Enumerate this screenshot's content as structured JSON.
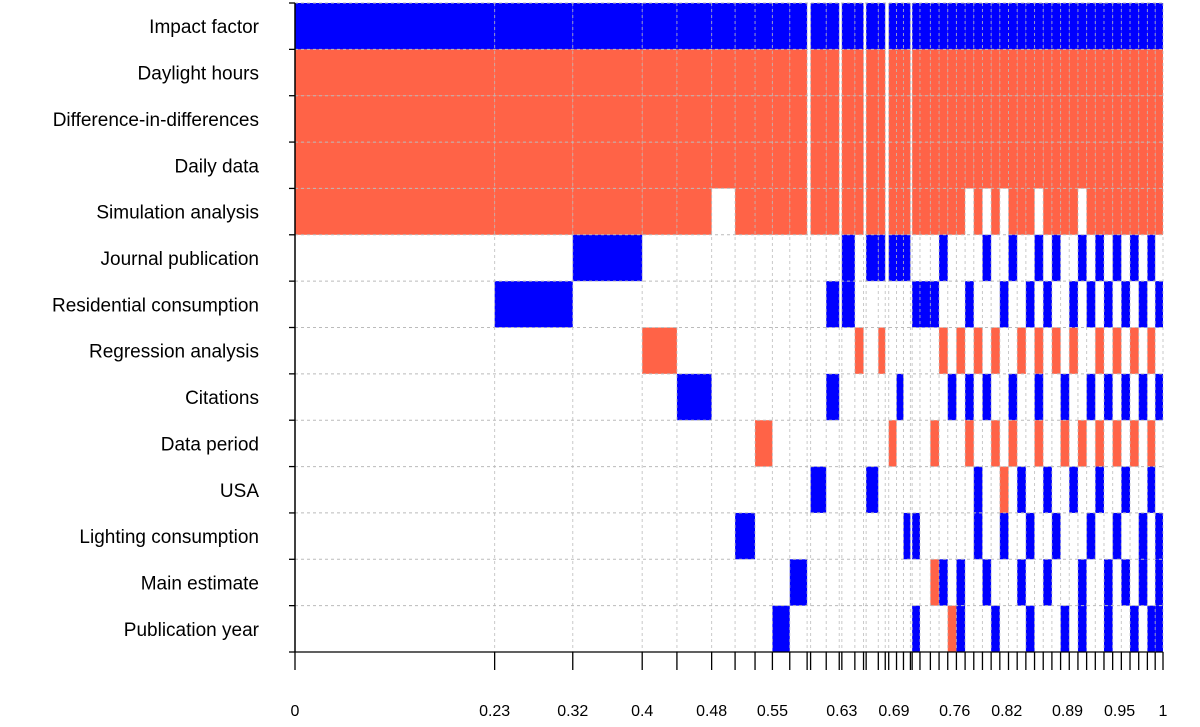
{
  "chart_data": {
    "type": "heatmap",
    "title": "",
    "xlabel": "",
    "ylabel": "",
    "xlim": [
      0,
      1
    ],
    "grid": true,
    "colors": {
      "positive": "#0000ff",
      "negative": "#ff6347",
      "empty": "#ffffff",
      "grid": "#bbbbbb"
    },
    "variables": [
      "Impact factor",
      "Daylight hours",
      "Difference-in-differences",
      "Daily data",
      "Simulation analysis",
      "Journal publication",
      "Residential consumption",
      "Regression analysis",
      "Citations",
      "Data period",
      "USA",
      "Lighting consumption",
      "Main estimate",
      "Publication year"
    ],
    "x_tick_labels": [
      "0",
      "0.23",
      "0.32",
      "0.4",
      "0.48",
      "0.55",
      "0.63",
      "0.69",
      "0.76",
      "0.82",
      "0.89",
      "0.95",
      "1"
    ],
    "x_tick_values": [
      0,
      0.23,
      0.32,
      0.4,
      0.48,
      0.55,
      0.63,
      0.69,
      0.76,
      0.82,
      0.89,
      0.95,
      1
    ],
    "models": [
      {
        "x0": 0.0,
        "x1": 0.23,
        "cells": {
          "Impact factor": "+",
          "Daylight hours": "-",
          "Difference-in-differences": "-",
          "Daily data": "-",
          "Simulation analysis": "-"
        }
      },
      {
        "x0": 0.23,
        "x1": 0.32,
        "cells": {
          "Impact factor": "+",
          "Daylight hours": "-",
          "Difference-in-differences": "-",
          "Daily data": "-",
          "Simulation analysis": "-",
          "Residential consumption": "+"
        }
      },
      {
        "x0": 0.32,
        "x1": 0.4,
        "cells": {
          "Impact factor": "+",
          "Daylight hours": "-",
          "Difference-in-differences": "-",
          "Daily data": "-",
          "Simulation analysis": "-",
          "Journal publication": "+"
        }
      },
      {
        "x0": 0.4,
        "x1": 0.44,
        "cells": {
          "Impact factor": "+",
          "Daylight hours": "-",
          "Difference-in-differences": "-",
          "Daily data": "-",
          "Simulation analysis": "-",
          "Regression analysis": "-"
        }
      },
      {
        "x0": 0.44,
        "x1": 0.48,
        "cells": {
          "Impact factor": "+",
          "Daylight hours": "-",
          "Difference-in-differences": "-",
          "Daily data": "-",
          "Simulation analysis": "-",
          "Citations": "+"
        }
      },
      {
        "x0": 0.48,
        "x1": 0.507,
        "cells": {
          "Impact factor": "+",
          "Daylight hours": "-",
          "Difference-in-differences": "-",
          "Daily data": "-"
        }
      },
      {
        "x0": 0.507,
        "x1": 0.53,
        "cells": {
          "Impact factor": "+",
          "Daylight hours": "-",
          "Difference-in-differences": "-",
          "Daily data": "-",
          "Simulation analysis": "-",
          "Lighting consumption": "+"
        }
      },
      {
        "x0": 0.53,
        "x1": 0.55,
        "cells": {
          "Impact factor": "+",
          "Daylight hours": "-",
          "Difference-in-differences": "-",
          "Daily data": "-",
          "Simulation analysis": "-",
          "Data period": "-"
        }
      },
      {
        "x0": 0.55,
        "x1": 0.57,
        "cells": {
          "Impact factor": "+",
          "Daylight hours": "-",
          "Difference-in-differences": "-",
          "Daily data": "-",
          "Simulation analysis": "-",
          "Publication year": "+"
        }
      },
      {
        "x0": 0.57,
        "x1": 0.59,
        "cells": {
          "Impact factor": "+",
          "Daylight hours": "-",
          "Difference-in-differences": "-",
          "Daily data": "-",
          "Simulation analysis": "-",
          "Main estimate": "+"
        }
      },
      {
        "x0": 0.594,
        "x1": 0.612,
        "cells": {
          "Impact factor": "+",
          "Daylight hours": "-",
          "Difference-in-differences": "-",
          "Daily data": "-",
          "Simulation analysis": "-",
          "USA": "+"
        }
      },
      {
        "x0": 0.612,
        "x1": 0.627,
        "cells": {
          "Impact factor": "+",
          "Daylight hours": "-",
          "Difference-in-differences": "-",
          "Daily data": "-",
          "Simulation analysis": "-",
          "Residential consumption": "+",
          "Citations": "+"
        }
      },
      {
        "x0": 0.63,
        "x1": 0.645,
        "cells": {
          "Impact factor": "+",
          "Daylight hours": "-",
          "Difference-in-differences": "-",
          "Daily data": "-",
          "Simulation analysis": "-",
          "Journal publication": "+",
          "Residential consumption": "+"
        }
      },
      {
        "x0": 0.645,
        "x1": 0.655,
        "cells": {
          "Impact factor": "+",
          "Daylight hours": "-",
          "Difference-in-differences": "-",
          "Daily data": "-",
          "Simulation analysis": "-",
          "Regression analysis": "-"
        }
      },
      {
        "x0": 0.658,
        "x1": 0.672,
        "cells": {
          "Impact factor": "+",
          "Daylight hours": "-",
          "Difference-in-differences": "-",
          "Daily data": "-",
          "Simulation analysis": "-",
          "Journal publication": "+",
          "USA": "+"
        }
      },
      {
        "x0": 0.672,
        "x1": 0.68,
        "cells": {
          "Impact factor": "+",
          "Daylight hours": "-",
          "Difference-in-differences": "-",
          "Daily data": "-",
          "Simulation analysis": "-",
          "Journal publication": "+",
          "Regression analysis": "-"
        }
      },
      {
        "x0": 0.684,
        "x1": 0.693,
        "cells": {
          "Impact factor": "+",
          "Daylight hours": "-",
          "Difference-in-differences": "-",
          "Daily data": "-",
          "Simulation analysis": "-",
          "Journal publication": "+",
          "Data period": "-"
        }
      },
      {
        "x0": 0.693,
        "x1": 0.701,
        "cells": {
          "Impact factor": "+",
          "Daylight hours": "-",
          "Difference-in-differences": "-",
          "Daily data": "-",
          "Simulation analysis": "-",
          "Journal publication": "+",
          "Citations": "+"
        }
      },
      {
        "x0": 0.701,
        "x1": 0.709,
        "cells": {
          "Impact factor": "+",
          "Daylight hours": "-",
          "Difference-in-differences": "-",
          "Daily data": "-",
          "Simulation analysis": "-",
          "Journal publication": "+",
          "Lighting consumption": "+"
        }
      },
      {
        "x0": 0.711,
        "x1": 0.72,
        "cells": {
          "Impact factor": "+",
          "Daylight hours": "-",
          "Difference-in-differences": "-",
          "Daily data": "-",
          "Simulation analysis": "-",
          "Residential consumption": "+",
          "Lighting consumption": "+",
          "Publication year": "+"
        }
      },
      {
        "x0": 0.72,
        "x1": 0.732,
        "cells": {
          "Impact factor": "+",
          "Daylight hours": "-",
          "Difference-in-differences": "-",
          "Daily data": "-",
          "Simulation analysis": "-",
          "Residential consumption": "+"
        }
      },
      {
        "x0": 0.732,
        "x1": 0.742,
        "cells": {
          "Impact factor": "+",
          "Daylight hours": "-",
          "Difference-in-differences": "-",
          "Daily data": "-",
          "Simulation analysis": "-",
          "Residential consumption": "+",
          "Data period": "-",
          "Main estimate": "-"
        }
      },
      {
        "x0": 0.742,
        "x1": 0.752,
        "cells": {
          "Impact factor": "+",
          "Daylight hours": "-",
          "Difference-in-differences": "-",
          "Daily data": "-",
          "Simulation analysis": "-",
          "Journal publication": "+",
          "Regression analysis": "-",
          "Main estimate": "+"
        }
      },
      {
        "x0": 0.752,
        "x1": 0.762,
        "cells": {
          "Impact factor": "+",
          "Daylight hours": "-",
          "Difference-in-differences": "-",
          "Daily data": "-",
          "Simulation analysis": "-",
          "Citations": "+",
          "Publication year": "-"
        }
      },
      {
        "x0": 0.762,
        "x1": 0.772,
        "cells": {
          "Impact factor": "+",
          "Daylight hours": "-",
          "Difference-in-differences": "-",
          "Daily data": "-",
          "Simulation analysis": "-",
          "Regression analysis": "-",
          "Main estimate": "+",
          "Publication year": "+"
        }
      },
      {
        "x0": 0.772,
        "x1": 0.782,
        "cells": {
          "Impact factor": "+",
          "Daylight hours": "-",
          "Difference-in-differences": "-",
          "Daily data": "-",
          "Residential consumption": "+",
          "Citations": "+",
          "Data period": "-"
        }
      },
      {
        "x0": 0.782,
        "x1": 0.792,
        "cells": {
          "Impact factor": "+",
          "Daylight hours": "-",
          "Difference-in-differences": "-",
          "Daily data": "-",
          "Simulation analysis": "-",
          "Regression analysis": "-",
          "Lighting consumption": "+",
          "USA": "+"
        }
      },
      {
        "x0": 0.792,
        "x1": 0.802,
        "cells": {
          "Impact factor": "+",
          "Daylight hours": "-",
          "Difference-in-differences": "-",
          "Daily data": "-",
          "Journal publication": "+",
          "Citations": "+",
          "Main estimate": "+"
        }
      },
      {
        "x0": 0.802,
        "x1": 0.812,
        "cells": {
          "Impact factor": "+",
          "Daylight hours": "-",
          "Difference-in-differences": "-",
          "Daily data": "-",
          "Simulation analysis": "-",
          "Regression analysis": "-",
          "Data period": "-",
          "Publication year": "+"
        }
      },
      {
        "x0": 0.812,
        "x1": 0.822,
        "cells": {
          "Impact factor": "+",
          "Daylight hours": "-",
          "Difference-in-differences": "-",
          "Daily data": "-",
          "Residential consumption": "+",
          "USA": "-",
          "Lighting consumption": "+"
        }
      },
      {
        "x0": 0.822,
        "x1": 0.832,
        "cells": {
          "Impact factor": "+",
          "Daylight hours": "-",
          "Difference-in-differences": "-",
          "Daily data": "-",
          "Simulation analysis": "-",
          "Journal publication": "+",
          "Citations": "+",
          "Data period": "-"
        }
      },
      {
        "x0": 0.832,
        "x1": 0.842,
        "cells": {
          "Impact factor": "+",
          "Daylight hours": "-",
          "Difference-in-differences": "-",
          "Daily data": "-",
          "Simulation analysis": "-",
          "Regression analysis": "-",
          "USA": "+",
          "Main estimate": "+"
        }
      },
      {
        "x0": 0.842,
        "x1": 0.852,
        "cells": {
          "Impact factor": "+",
          "Daylight hours": "-",
          "Difference-in-differences": "-",
          "Daily data": "-",
          "Simulation analysis": "-",
          "Residential consumption": "+",
          "Lighting consumption": "+",
          "Publication year": "+"
        }
      },
      {
        "x0": 0.852,
        "x1": 0.862,
        "cells": {
          "Impact factor": "+",
          "Daylight hours": "-",
          "Difference-in-differences": "-",
          "Daily data": "-",
          "Journal publication": "+",
          "Regression analysis": "-",
          "Citations": "+",
          "Data period": "-"
        }
      },
      {
        "x0": 0.862,
        "x1": 0.872,
        "cells": {
          "Impact factor": "+",
          "Daylight hours": "-",
          "Difference-in-differences": "-",
          "Daily data": "-",
          "Simulation analysis": "-",
          "Residential consumption": "+",
          "USA": "+",
          "Main estimate": "+"
        }
      },
      {
        "x0": 0.872,
        "x1": 0.882,
        "cells": {
          "Impact factor": "+",
          "Daylight hours": "-",
          "Difference-in-differences": "-",
          "Daily data": "-",
          "Simulation analysis": "-",
          "Journal publication": "+",
          "Regression analysis": "-",
          "Lighting consumption": "+"
        }
      },
      {
        "x0": 0.882,
        "x1": 0.892,
        "cells": {
          "Impact factor": "+",
          "Daylight hours": "-",
          "Difference-in-differences": "-",
          "Daily data": "-",
          "Simulation analysis": "-",
          "Citations": "+",
          "Data period": "-",
          "Publication year": "+"
        }
      },
      {
        "x0": 0.892,
        "x1": 0.902,
        "cells": {
          "Impact factor": "+",
          "Daylight hours": "-",
          "Difference-in-differences": "-",
          "Daily data": "-",
          "Simulation analysis": "-",
          "Residential consumption": "+",
          "Regression analysis": "-",
          "USA": "+"
        }
      },
      {
        "x0": 0.902,
        "x1": 0.912,
        "cells": {
          "Impact factor": "+",
          "Daylight hours": "-",
          "Difference-in-differences": "-",
          "Daily data": "-",
          "Journal publication": "+",
          "Data period": "-",
          "Main estimate": "+",
          "Publication year": "+"
        }
      },
      {
        "x0": 0.912,
        "x1": 0.922,
        "cells": {
          "Impact factor": "+",
          "Daylight hours": "-",
          "Difference-in-differences": "-",
          "Daily data": "-",
          "Simulation analysis": "-",
          "Residential consumption": "+",
          "Citations": "+",
          "Lighting consumption": "+"
        }
      },
      {
        "x0": 0.922,
        "x1": 0.932,
        "cells": {
          "Impact factor": "+",
          "Daylight hours": "-",
          "Difference-in-differences": "-",
          "Daily data": "-",
          "Simulation analysis": "-",
          "Journal publication": "+",
          "Regression analysis": "-",
          "Data period": "-",
          "USA": "+"
        }
      },
      {
        "x0": 0.932,
        "x1": 0.942,
        "cells": {
          "Impact factor": "+",
          "Daylight hours": "-",
          "Difference-in-differences": "-",
          "Daily data": "-",
          "Simulation analysis": "-",
          "Residential consumption": "+",
          "Citations": "+",
          "Main estimate": "+",
          "Publication year": "+"
        }
      },
      {
        "x0": 0.942,
        "x1": 0.952,
        "cells": {
          "Impact factor": "+",
          "Daylight hours": "-",
          "Difference-in-differences": "-",
          "Daily data": "-",
          "Simulation analysis": "-",
          "Journal publication": "+",
          "Regression analysis": "-",
          "Data period": "-",
          "Lighting consumption": "+"
        }
      },
      {
        "x0": 0.952,
        "x1": 0.962,
        "cells": {
          "Impact factor": "+",
          "Daylight hours": "-",
          "Difference-in-differences": "-",
          "Daily data": "-",
          "Simulation analysis": "-",
          "Residential consumption": "+",
          "Citations": "+",
          "USA": "+",
          "Main estimate": "+"
        }
      },
      {
        "x0": 0.962,
        "x1": 0.972,
        "cells": {
          "Impact factor": "+",
          "Daylight hours": "-",
          "Difference-in-differences": "-",
          "Daily data": "-",
          "Simulation analysis": "-",
          "Journal publication": "+",
          "Regression analysis": "-",
          "Data period": "-",
          "Publication year": "+"
        }
      },
      {
        "x0": 0.972,
        "x1": 0.982,
        "cells": {
          "Impact factor": "+",
          "Daylight hours": "-",
          "Difference-in-differences": "-",
          "Daily data": "-",
          "Simulation analysis": "-",
          "Residential consumption": "+",
          "Citations": "+",
          "Lighting consumption": "+",
          "Main estimate": "+"
        }
      },
      {
        "x0": 0.982,
        "x1": 0.991,
        "cells": {
          "Impact factor": "+",
          "Daylight hours": "-",
          "Difference-in-differences": "-",
          "Daily data": "-",
          "Simulation analysis": "-",
          "Journal publication": "+",
          "Regression analysis": "-",
          "Data period": "-",
          "USA": "+",
          "Publication year": "+"
        }
      },
      {
        "x0": 0.991,
        "x1": 1.0,
        "cells": {
          "Impact factor": "+",
          "Daylight hours": "-",
          "Difference-in-differences": "-",
          "Daily data": "-",
          "Simulation analysis": "-",
          "Residential consumption": "+",
          "Citations": "+",
          "Lighting consumption": "+",
          "Main estimate": "+",
          "Publication year": "+"
        }
      }
    ]
  }
}
